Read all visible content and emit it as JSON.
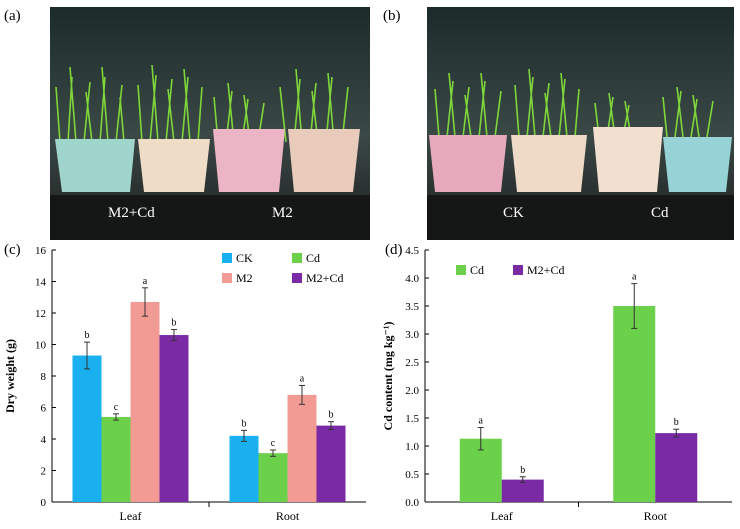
{
  "panels": {
    "a": {
      "letter": "(a)",
      "labels": [
        "M2+Cd",
        "M2"
      ]
    },
    "b": {
      "letter": "(b)",
      "labels": [
        "CK",
        "Cd"
      ]
    },
    "c": {
      "letter": "(c)"
    },
    "d": {
      "letter": "(d)"
    }
  },
  "colors": {
    "CK": "#1ab0ef",
    "Cd": "#6bd04a",
    "M2": "#f29b94",
    "M2+Cd": "#7b2aa6"
  },
  "chart_data": [
    {
      "id": "c",
      "type": "bar",
      "title": "",
      "xlabel": "",
      "ylabel": "Dry weight (g)",
      "ylim": [
        0,
        16
      ],
      "yticks": [
        0,
        2,
        4,
        6,
        8,
        10,
        12,
        14,
        16
      ],
      "categories": [
        "Leaf",
        "Root"
      ],
      "legend_position": "top-right",
      "series": [
        {
          "name": "CK",
          "values": [
            9.3,
            4.2
          ],
          "errors": [
            0.85,
            0.35
          ],
          "letters": [
            "b",
            "b"
          ]
        },
        {
          "name": "Cd",
          "values": [
            5.4,
            3.1
          ],
          "errors": [
            0.2,
            0.2
          ],
          "letters": [
            "c",
            "c"
          ]
        },
        {
          "name": "M2",
          "values": [
            12.7,
            6.8
          ],
          "errors": [
            0.9,
            0.6
          ],
          "letters": [
            "a",
            "a"
          ]
        },
        {
          "name": "M2+Cd",
          "values": [
            10.6,
            4.85
          ],
          "errors": [
            0.35,
            0.25
          ],
          "letters": [
            "b",
            "b"
          ]
        }
      ]
    },
    {
      "id": "d",
      "type": "bar",
      "title": "",
      "xlabel": "",
      "ylabel": "Cd content (mg kg⁻¹)",
      "ylim": [
        0,
        4.5
      ],
      "yticks": [
        "0.0",
        "0.5",
        "1.0",
        "1.5",
        "2.0",
        "2.5",
        "3.0",
        "3.5",
        "4.0",
        "4.5"
      ],
      "categories": [
        "Leaf",
        "Root"
      ],
      "legend_position": "top-left",
      "series": [
        {
          "name": "Cd",
          "values": [
            1.13,
            3.5
          ],
          "errors": [
            0.2,
            0.4
          ],
          "letters": [
            "a",
            "a"
          ]
        },
        {
          "name": "M2+Cd",
          "values": [
            0.4,
            1.23
          ],
          "errors": [
            0.05,
            0.07
          ],
          "letters": [
            "b",
            "b"
          ]
        }
      ]
    }
  ]
}
